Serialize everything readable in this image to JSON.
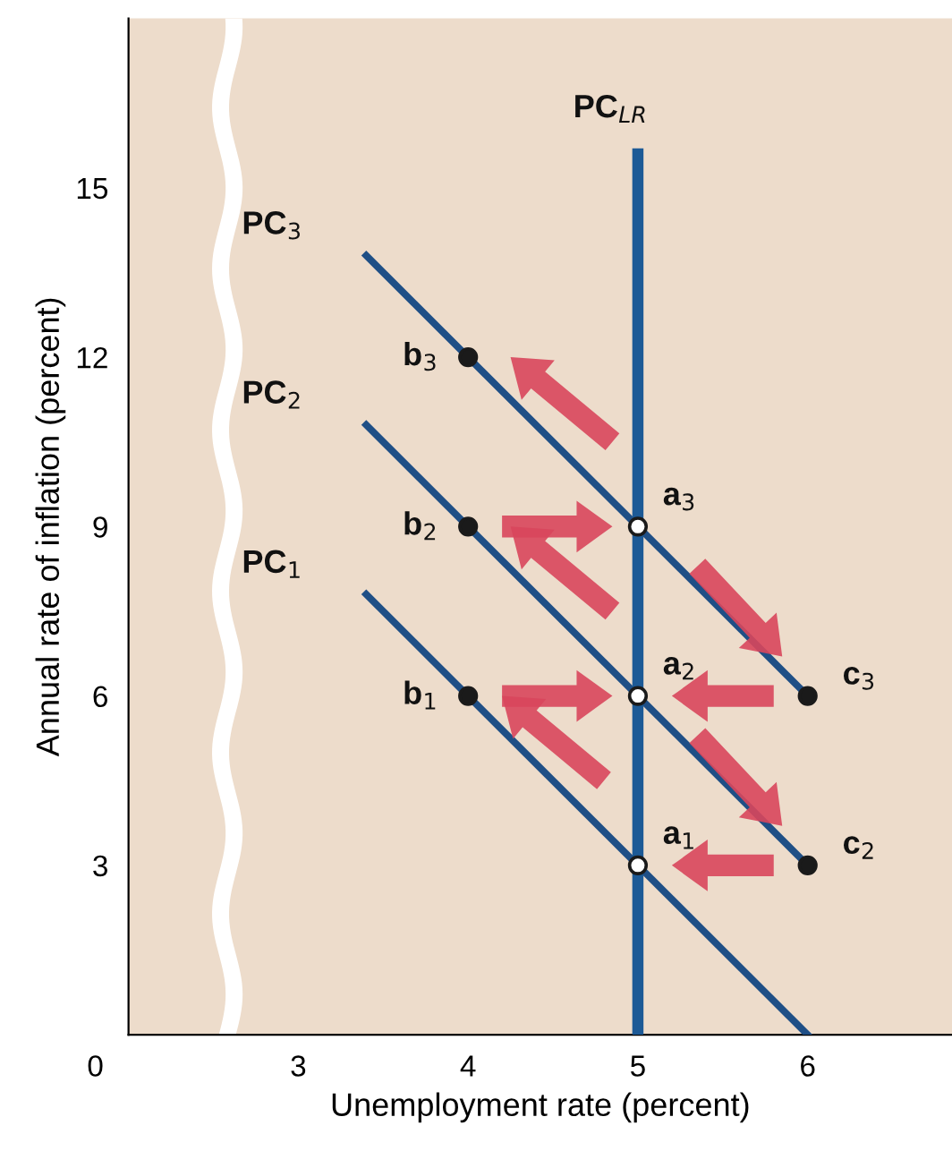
{
  "chart_data": {
    "type": "line",
    "xlabel": "Unemployment rate (percent)",
    "ylabel": "Annual rate of inflation (percent)",
    "xlim": [
      2.0,
      6.85
    ],
    "ylim": [
      0,
      18
    ],
    "xticks": [
      3,
      4,
      5,
      6
    ],
    "yticks": [
      3,
      6,
      9,
      12,
      15
    ],
    "grid": false,
    "legend": false,
    "marker": "none",
    "line_style": "solid",
    "series": [
      {
        "type": "line",
        "color": "#1f4f86",
        "x": [
          3.4,
          6
        ],
        "values": [
          13.8,
          6
        ]
      },
      {
        "type": "line",
        "color": "#1f4f86",
        "x": [
          3.4,
          6
        ],
        "values": [
          10.8,
          3
        ]
      },
      {
        "type": "line",
        "color": "#1f4f86",
        "x": [
          3.4,
          6
        ],
        "values": [
          7.8,
          0
        ]
      },
      {
        "type": "line",
        "color": "#1d5a96",
        "x": [
          5,
          5
        ],
        "values": [
          0,
          15.6
        ]
      },
      {
        "type": "scatter",
        "marker": "circle",
        "color": "#1a1a1a",
        "x": [
          4,
          4,
          4,
          6,
          6
        ],
        "values": [
          12,
          9,
          6,
          6,
          3
        ]
      },
      {
        "type": "scatter",
        "marker": "circle",
        "color": "#ffffff",
        "x": [
          5,
          5,
          5
        ],
        "values": [
          9,
          6,
          3
        ]
      }
    ],
    "annotations": [
      {
        "text": "PC$_{3}$",
        "x": 3.4,
        "y": 13.8
      },
      {
        "text": "PC$_{2}$",
        "x": 3.4,
        "y": 10.8
      },
      {
        "text": "PC$_{1}$",
        "x": 3.4,
        "y": 7.8
      },
      {
        "text": "PC$_{LR}$",
        "x": 5,
        "y": 15.6
      },
      {
        "text": "b$_{3}$",
        "x": 4,
        "y": 12
      },
      {
        "text": "b$_{2}$",
        "x": 4,
        "y": 9
      },
      {
        "text": "b$_{1}$",
        "x": 4,
        "y": 6
      },
      {
        "text": "a$_{3}$",
        "x": 5,
        "y": 9
      },
      {
        "text": "a$_{2}$",
        "x": 5,
        "y": 6
      },
      {
        "text": "a$_{1}$",
        "x": 5,
        "y": 3
      },
      {
        "text": "c$_{3}$",
        "x": 6,
        "y": 6
      },
      {
        "text": "c$_{2}$",
        "x": 6,
        "y": 3
      },
      "0"
    ]
  }
}
